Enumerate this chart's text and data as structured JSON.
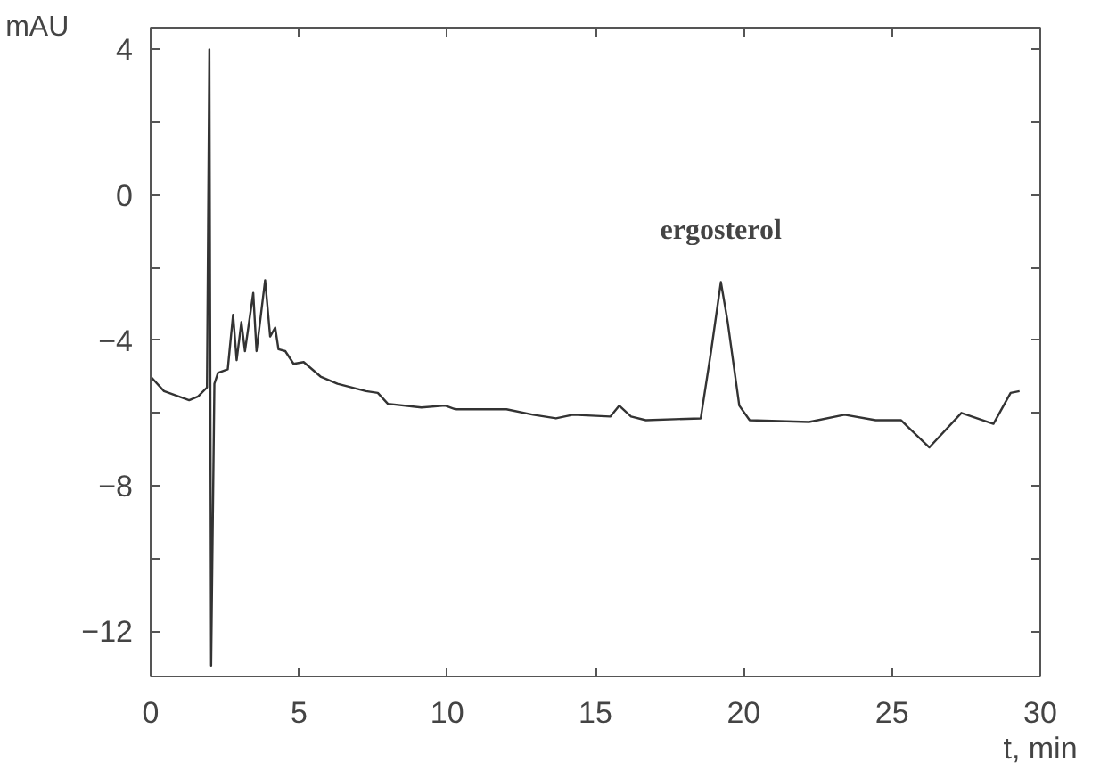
{
  "chart_data": {
    "type": "line",
    "xlabel": "t, min",
    "ylabel": "mAU",
    "annotations": [
      {
        "text": "ergosterol",
        "x": 19.23,
        "y": -2.4
      }
    ],
    "series": [
      {
        "color": "#333333",
        "x": [
          0,
          0.45,
          1.3,
          1.6,
          1.9,
          1.98,
          2.04,
          2.15,
          2.27,
          2.6,
          2.78,
          2.9,
          3.06,
          3.18,
          3.46,
          3.57,
          3.86,
          4.03,
          4.2,
          4.31,
          4.54,
          4.82,
          5.16,
          5.73,
          6.3,
          7.26,
          7.66,
          8.0,
          9.13,
          9.93,
          10.27,
          12.0,
          12.9,
          13.67,
          14.24,
          15.5,
          15.8,
          16.2,
          16.7,
          18.55,
          18.9,
          19.23,
          19.46,
          19.85,
          20.2,
          22.2,
          23.4,
          24.45,
          25.3,
          26.26,
          27.34,
          28.42,
          29.0,
          29.3
        ],
        "values": [
          -5.0,
          -5.4,
          -5.65,
          -5.55,
          -5.3,
          4.0,
          -12.95,
          -5.2,
          -4.9,
          -4.8,
          -3.3,
          -4.55,
          -3.5,
          -4.3,
          -2.7,
          -4.3,
          -2.35,
          -3.9,
          -3.65,
          -4.25,
          -4.3,
          -4.65,
          -4.6,
          -5.0,
          -5.2,
          -5.4,
          -5.45,
          -5.75,
          -5.85,
          -5.8,
          -5.9,
          -5.9,
          -6.05,
          -6.15,
          -6.05,
          -6.1,
          -5.8,
          -6.1,
          -6.2,
          -6.15,
          -4.3,
          -2.4,
          -3.5,
          -5.8,
          -6.2,
          -6.25,
          -6.05,
          -6.2,
          -6.2,
          -6.95,
          -6.0,
          -6.3,
          -5.45,
          -5.4
        ]
      }
    ],
    "xlim": [
      0,
      30
    ],
    "xticks": [
      0,
      5,
      10,
      15,
      20,
      25,
      30
    ],
    "ylim": [
      -13.25,
      4.6
    ],
    "yticks": [
      {
        "value": -12,
        "label": "−12"
      },
      {
        "value": -10,
        "label": null
      },
      {
        "value": -8,
        "label": "−8"
      },
      {
        "value": -6,
        "label": null
      },
      {
        "value": -4,
        "label": "−4"
      },
      {
        "value": -2,
        "label": null
      },
      0,
      {
        "value": 2,
        "label": null
      },
      4
    ],
    "grid": false,
    "marker": "none",
    "line_style": "solid"
  }
}
